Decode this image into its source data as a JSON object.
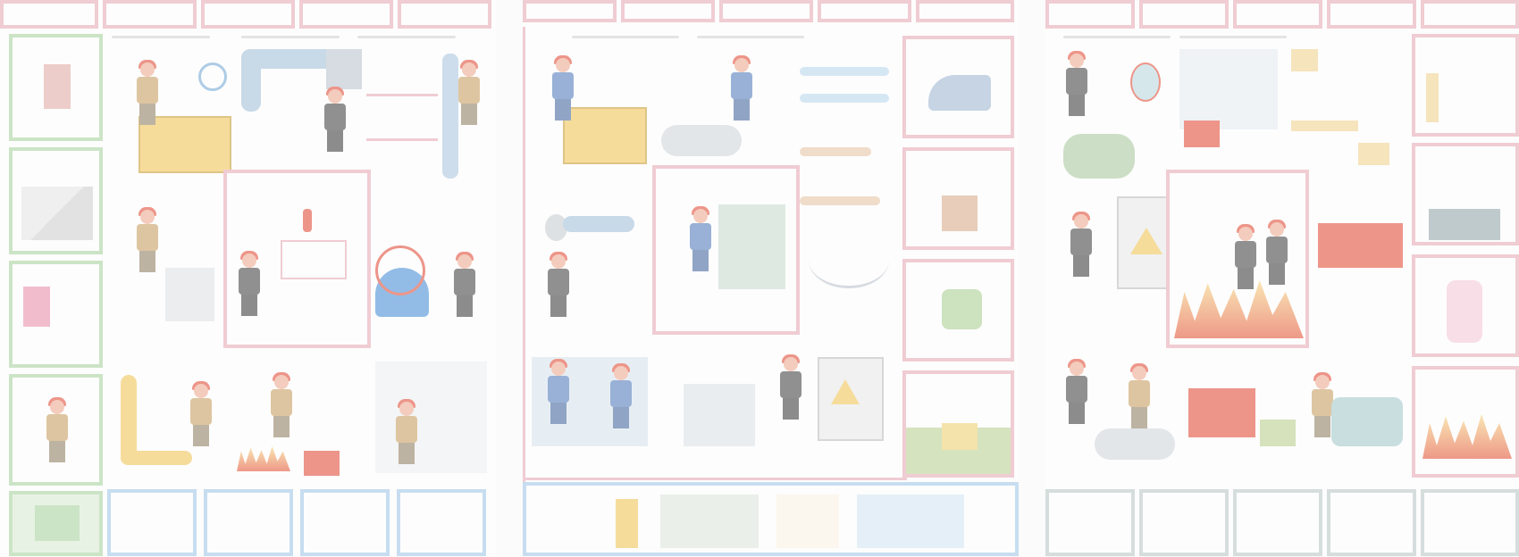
{
  "page": {
    "description_text": ""
  },
  "colors": {
    "red_frame": "#e8a6b4",
    "green_frame": "#a7d29b",
    "blue_frame": "#9ec5e8",
    "gray_frame": "#b8c7c6",
    "helmet": "#e2422d",
    "table": "#f2c44e"
  },
  "icons": {
    "exit": "exit-sign-icon",
    "warning": "high-voltage-warning-icon",
    "fire": "fire-icon",
    "extinguisher": "fire-extinguisher-icon"
  }
}
